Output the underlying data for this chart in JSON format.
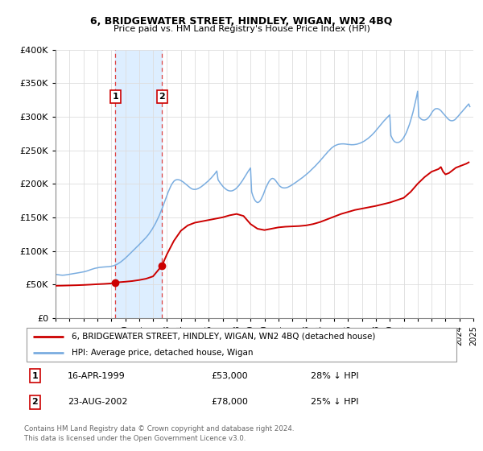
{
  "title": "6, BRIDGEWATER STREET, HINDLEY, WIGAN, WN2 4BQ",
  "subtitle": "Price paid vs. HM Land Registry's House Price Index (HPI)",
  "ylim": [
    0,
    400000
  ],
  "yticks": [
    0,
    50000,
    100000,
    150000,
    200000,
    250000,
    300000,
    350000,
    400000
  ],
  "xlim": [
    1995,
    2025
  ],
  "background_color": "#ffffff",
  "grid_color": "#dddddd",
  "hpi_color": "#7aade0",
  "price_color": "#cc0000",
  "shade_color": "#ddeeff",
  "shade_x1": 1999.29,
  "shade_x2": 2002.64,
  "ann1_x": 1999.29,
  "ann1_y": 53000,
  "ann2_x": 2002.64,
  "ann2_y": 78000,
  "legend_line1": "6, BRIDGEWATER STREET, HINDLEY, WIGAN, WN2 4BQ (detached house)",
  "legend_line2": "HPI: Average price, detached house, Wigan",
  "info1_label": "1",
  "info1_date": "16-APR-1999",
  "info1_price": "£53,000",
  "info1_hpi": "28% ↓ HPI",
  "info2_label": "2",
  "info2_date": "23-AUG-2002",
  "info2_price": "£78,000",
  "info2_hpi": "25% ↓ HPI",
  "footer1": "Contains HM Land Registry data © Crown copyright and database right 2024.",
  "footer2": "This data is licensed under the Open Government Licence v3.0.",
  "hpi_data": [
    [
      1995.0,
      65000
    ],
    [
      1995.08,
      64800
    ],
    [
      1995.17,
      64500
    ],
    [
      1995.25,
      64200
    ],
    [
      1995.33,
      64000
    ],
    [
      1995.42,
      63800
    ],
    [
      1995.5,
      63700
    ],
    [
      1995.58,
      63800
    ],
    [
      1995.67,
      64000
    ],
    [
      1995.75,
      64200
    ],
    [
      1995.83,
      64500
    ],
    [
      1995.92,
      64800
    ],
    [
      1996.0,
      65000
    ],
    [
      1996.08,
      65300
    ],
    [
      1996.17,
      65600
    ],
    [
      1996.25,
      65900
    ],
    [
      1996.33,
      66200
    ],
    [
      1996.42,
      66500
    ],
    [
      1996.5,
      66800
    ],
    [
      1996.58,
      67100
    ],
    [
      1996.67,
      67400
    ],
    [
      1996.75,
      67700
    ],
    [
      1996.83,
      68000
    ],
    [
      1996.92,
      68300
    ],
    [
      1997.0,
      68600
    ],
    [
      1997.08,
      69000
    ],
    [
      1997.17,
      69500
    ],
    [
      1997.25,
      70000
    ],
    [
      1997.33,
      70600
    ],
    [
      1997.42,
      71200
    ],
    [
      1997.5,
      71800
    ],
    [
      1997.58,
      72400
    ],
    [
      1997.67,
      73000
    ],
    [
      1997.75,
      73500
    ],
    [
      1997.83,
      74000
    ],
    [
      1997.92,
      74400
    ],
    [
      1998.0,
      74800
    ],
    [
      1998.08,
      75100
    ],
    [
      1998.17,
      75400
    ],
    [
      1998.25,
      75600
    ],
    [
      1998.33,
      75800
    ],
    [
      1998.42,
      75900
    ],
    [
      1998.5,
      76000
    ],
    [
      1998.58,
      76100
    ],
    [
      1998.67,
      76200
    ],
    [
      1998.75,
      76300
    ],
    [
      1998.83,
      76500
    ],
    [
      1998.92,
      76700
    ],
    [
      1999.0,
      77000
    ],
    [
      1999.08,
      77400
    ],
    [
      1999.17,
      77900
    ],
    [
      1999.25,
      78500
    ],
    [
      1999.33,
      79200
    ],
    [
      1999.42,
      80000
    ],
    [
      1999.5,
      81000
    ],
    [
      1999.58,
      82100
    ],
    [
      1999.67,
      83300
    ],
    [
      1999.75,
      84600
    ],
    [
      1999.83,
      86000
    ],
    [
      1999.92,
      87500
    ],
    [
      2000.0,
      89000
    ],
    [
      2000.08,
      90600
    ],
    [
      2000.17,
      92200
    ],
    [
      2000.25,
      93900
    ],
    [
      2000.33,
      95600
    ],
    [
      2000.42,
      97300
    ],
    [
      2000.5,
      99000
    ],
    [
      2000.58,
      100700
    ],
    [
      2000.67,
      102400
    ],
    [
      2000.75,
      104100
    ],
    [
      2000.83,
      105800
    ],
    [
      2000.92,
      107500
    ],
    [
      2001.0,
      109200
    ],
    [
      2001.08,
      111000
    ],
    [
      2001.17,
      112800
    ],
    [
      2001.25,
      114600
    ],
    [
      2001.33,
      116400
    ],
    [
      2001.42,
      118200
    ],
    [
      2001.5,
      120000
    ],
    [
      2001.58,
      122000
    ],
    [
      2001.67,
      124200
    ],
    [
      2001.75,
      126500
    ],
    [
      2001.83,
      129000
    ],
    [
      2001.92,
      131700
    ],
    [
      2002.0,
      134500
    ],
    [
      2002.08,
      137500
    ],
    [
      2002.17,
      140700
    ],
    [
      2002.25,
      144100
    ],
    [
      2002.33,
      147700
    ],
    [
      2002.42,
      151500
    ],
    [
      2002.5,
      155500
    ],
    [
      2002.58,
      159700
    ],
    [
      2002.67,
      164100
    ],
    [
      2002.75,
      168600
    ],
    [
      2002.83,
      173200
    ],
    [
      2002.92,
      177900
    ],
    [
      2003.0,
      182600
    ],
    [
      2003.08,
      187200
    ],
    [
      2003.17,
      191500
    ],
    [
      2003.25,
      195400
    ],
    [
      2003.33,
      198800
    ],
    [
      2003.42,
      201600
    ],
    [
      2003.5,
      203800
    ],
    [
      2003.58,
      205200
    ],
    [
      2003.67,
      206000
    ],
    [
      2003.75,
      206200
    ],
    [
      2003.83,
      206000
    ],
    [
      2003.92,
      205600
    ],
    [
      2004.0,
      204800
    ],
    [
      2004.08,
      203800
    ],
    [
      2004.17,
      202600
    ],
    [
      2004.25,
      201200
    ],
    [
      2004.33,
      199700
    ],
    [
      2004.42,
      198200
    ],
    [
      2004.5,
      196700
    ],
    [
      2004.58,
      195300
    ],
    [
      2004.67,
      194000
    ],
    [
      2004.75,
      192900
    ],
    [
      2004.83,
      192100
    ],
    [
      2004.92,
      191700
    ],
    [
      2005.0,
      191600
    ],
    [
      2005.08,
      191800
    ],
    [
      2005.17,
      192300
    ],
    [
      2005.25,
      193000
    ],
    [
      2005.33,
      193900
    ],
    [
      2005.42,
      195000
    ],
    [
      2005.5,
      196200
    ],
    [
      2005.58,
      197500
    ],
    [
      2005.67,
      198900
    ],
    [
      2005.75,
      200400
    ],
    [
      2005.83,
      201900
    ],
    [
      2005.92,
      203400
    ],
    [
      2006.0,
      205000
    ],
    [
      2006.08,
      206700
    ],
    [
      2006.17,
      208500
    ],
    [
      2006.25,
      210400
    ],
    [
      2006.33,
      212400
    ],
    [
      2006.42,
      214500
    ],
    [
      2006.5,
      216700
    ],
    [
      2006.58,
      219000
    ],
    [
      2006.67,
      206000
    ],
    [
      2006.75,
      203500
    ],
    [
      2006.83,
      201000
    ],
    [
      2006.92,
      198600
    ],
    [
      2007.0,
      196500
    ],
    [
      2007.08,
      194600
    ],
    [
      2007.17,
      193000
    ],
    [
      2007.25,
      191700
    ],
    [
      2007.33,
      190600
    ],
    [
      2007.42,
      189800
    ],
    [
      2007.5,
      189400
    ],
    [
      2007.58,
      189300
    ],
    [
      2007.67,
      189500
    ],
    [
      2007.75,
      190100
    ],
    [
      2007.83,
      191000
    ],
    [
      2007.92,
      192200
    ],
    [
      2008.0,
      193700
    ],
    [
      2008.08,
      195500
    ],
    [
      2008.17,
      197500
    ],
    [
      2008.25,
      199700
    ],
    [
      2008.33,
      202100
    ],
    [
      2008.42,
      204700
    ],
    [
      2008.5,
      207400
    ],
    [
      2008.58,
      210200
    ],
    [
      2008.67,
      213000
    ],
    [
      2008.75,
      215800
    ],
    [
      2008.83,
      218500
    ],
    [
      2008.92,
      221100
    ],
    [
      2009.0,
      223600
    ],
    [
      2009.08,
      188000
    ],
    [
      2009.17,
      182000
    ],
    [
      2009.25,
      178000
    ],
    [
      2009.33,
      175000
    ],
    [
      2009.42,
      173000
    ],
    [
      2009.5,
      172000
    ],
    [
      2009.58,
      172500
    ],
    [
      2009.67,
      174000
    ],
    [
      2009.75,
      176500
    ],
    [
      2009.83,
      180000
    ],
    [
      2009.92,
      184000
    ],
    [
      2010.0,
      188500
    ],
    [
      2010.08,
      193000
    ],
    [
      2010.17,
      197000
    ],
    [
      2010.25,
      200500
    ],
    [
      2010.33,
      203500
    ],
    [
      2010.42,
      206000
    ],
    [
      2010.5,
      207500
    ],
    [
      2010.58,
      208000
    ],
    [
      2010.67,
      207500
    ],
    [
      2010.75,
      206000
    ],
    [
      2010.83,
      204000
    ],
    [
      2010.92,
      201500
    ],
    [
      2011.0,
      199000
    ],
    [
      2011.08,
      197000
    ],
    [
      2011.17,
      195500
    ],
    [
      2011.25,
      194500
    ],
    [
      2011.33,
      194000
    ],
    [
      2011.42,
      193800
    ],
    [
      2011.5,
      193900
    ],
    [
      2011.58,
      194200
    ],
    [
      2011.67,
      194800
    ],
    [
      2011.75,
      195600
    ],
    [
      2011.83,
      196500
    ],
    [
      2011.92,
      197500
    ],
    [
      2012.0,
      198600
    ],
    [
      2012.08,
      199700
    ],
    [
      2012.17,
      200900
    ],
    [
      2012.25,
      202100
    ],
    [
      2012.33,
      203300
    ],
    [
      2012.42,
      204500
    ],
    [
      2012.5,
      205700
    ],
    [
      2012.58,
      207000
    ],
    [
      2012.67,
      208300
    ],
    [
      2012.75,
      209600
    ],
    [
      2012.83,
      211000
    ],
    [
      2012.92,
      212400
    ],
    [
      2013.0,
      213800
    ],
    [
      2013.08,
      215300
    ],
    [
      2013.17,
      216800
    ],
    [
      2013.25,
      218400
    ],
    [
      2013.33,
      220000
    ],
    [
      2013.42,
      221700
    ],
    [
      2013.5,
      223400
    ],
    [
      2013.58,
      225100
    ],
    [
      2013.67,
      226900
    ],
    [
      2013.75,
      228700
    ],
    [
      2013.83,
      230600
    ],
    [
      2013.92,
      232500
    ],
    [
      2014.0,
      234400
    ],
    [
      2014.08,
      236400
    ],
    [
      2014.17,
      238400
    ],
    [
      2014.25,
      240400
    ],
    [
      2014.33,
      242400
    ],
    [
      2014.42,
      244400
    ],
    [
      2014.5,
      246400
    ],
    [
      2014.58,
      248300
    ],
    [
      2014.67,
      250200
    ],
    [
      2014.75,
      251900
    ],
    [
      2014.83,
      253500
    ],
    [
      2014.92,
      254900
    ],
    [
      2015.0,
      256000
    ],
    [
      2015.08,
      257000
    ],
    [
      2015.17,
      257800
    ],
    [
      2015.25,
      258400
    ],
    [
      2015.33,
      258900
    ],
    [
      2015.42,
      259200
    ],
    [
      2015.5,
      259400
    ],
    [
      2015.58,
      259500
    ],
    [
      2015.67,
      259500
    ],
    [
      2015.75,
      259400
    ],
    [
      2015.83,
      259200
    ],
    [
      2015.92,
      259000
    ],
    [
      2016.0,
      258700
    ],
    [
      2016.08,
      258500
    ],
    [
      2016.17,
      258300
    ],
    [
      2016.25,
      258200
    ],
    [
      2016.33,
      258200
    ],
    [
      2016.42,
      258300
    ],
    [
      2016.5,
      258500
    ],
    [
      2016.58,
      258800
    ],
    [
      2016.67,
      259200
    ],
    [
      2016.75,
      259700
    ],
    [
      2016.83,
      260300
    ],
    [
      2016.92,
      261000
    ],
    [
      2017.0,
      261800
    ],
    [
      2017.08,
      262700
    ],
    [
      2017.17,
      263700
    ],
    [
      2017.25,
      264800
    ],
    [
      2017.33,
      266000
    ],
    [
      2017.42,
      267300
    ],
    [
      2017.5,
      268700
    ],
    [
      2017.58,
      270200
    ],
    [
      2017.67,
      271800
    ],
    [
      2017.75,
      273500
    ],
    [
      2017.83,
      275300
    ],
    [
      2017.92,
      277200
    ],
    [
      2018.0,
      279200
    ],
    [
      2018.08,
      281200
    ],
    [
      2018.17,
      283300
    ],
    [
      2018.25,
      285400
    ],
    [
      2018.33,
      287500
    ],
    [
      2018.42,
      289600
    ],
    [
      2018.5,
      291700
    ],
    [
      2018.58,
      293700
    ],
    [
      2018.67,
      295700
    ],
    [
      2018.75,
      297600
    ],
    [
      2018.83,
      299400
    ],
    [
      2018.92,
      301100
    ],
    [
      2019.0,
      302700
    ],
    [
      2019.08,
      272000
    ],
    [
      2019.17,
      268000
    ],
    [
      2019.25,
      265000
    ],
    [
      2019.33,
      263000
    ],
    [
      2019.42,
      262000
    ],
    [
      2019.5,
      261500
    ],
    [
      2019.58,
      261500
    ],
    [
      2019.67,
      262000
    ],
    [
      2019.75,
      263000
    ],
    [
      2019.83,
      264500
    ],
    [
      2019.92,
      266500
    ],
    [
      2020.0,
      269000
    ],
    [
      2020.08,
      272000
    ],
    [
      2020.17,
      275500
    ],
    [
      2020.25,
      279500
    ],
    [
      2020.33,
      284000
    ],
    [
      2020.42,
      289000
    ],
    [
      2020.5,
      294500
    ],
    [
      2020.58,
      300500
    ],
    [
      2020.67,
      307000
    ],
    [
      2020.75,
      314000
    ],
    [
      2020.83,
      321500
    ],
    [
      2020.92,
      329500
    ],
    [
      2021.0,
      338000
    ],
    [
      2021.08,
      300000
    ],
    [
      2021.17,
      298000
    ],
    [
      2021.25,
      296500
    ],
    [
      2021.33,
      295500
    ],
    [
      2021.42,
      295000
    ],
    [
      2021.5,
      295000
    ],
    [
      2021.58,
      295500
    ],
    [
      2021.67,
      296500
    ],
    [
      2021.75,
      298000
    ],
    [
      2021.83,
      300000
    ],
    [
      2021.92,
      302500
    ],
    [
      2022.0,
      305500
    ],
    [
      2022.08,
      308000
    ],
    [
      2022.17,
      310000
    ],
    [
      2022.25,
      311500
    ],
    [
      2022.33,
      312000
    ],
    [
      2022.42,
      312000
    ],
    [
      2022.5,
      311500
    ],
    [
      2022.58,
      310500
    ],
    [
      2022.67,
      309000
    ],
    [
      2022.75,
      307000
    ],
    [
      2022.83,
      305000
    ],
    [
      2022.92,
      303000
    ],
    [
      2023.0,
      301000
    ],
    [
      2023.08,
      299000
    ],
    [
      2023.17,
      297000
    ],
    [
      2023.25,
      295500
    ],
    [
      2023.33,
      294500
    ],
    [
      2023.42,
      294000
    ],
    [
      2023.5,
      294000
    ],
    [
      2023.58,
      294500
    ],
    [
      2023.67,
      295500
    ],
    [
      2023.75,
      297000
    ],
    [
      2023.83,
      299000
    ],
    [
      2023.92,
      301000
    ],
    [
      2024.0,
      303000
    ],
    [
      2024.08,
      305000
    ],
    [
      2024.17,
      307000
    ],
    [
      2024.25,
      309000
    ],
    [
      2024.33,
      311000
    ],
    [
      2024.42,
      313000
    ],
    [
      2024.5,
      315000
    ],
    [
      2024.58,
      317000
    ],
    [
      2024.67,
      319000
    ],
    [
      2024.75,
      315000
    ]
  ],
  "price_data": [
    [
      1995.0,
      48000
    ],
    [
      1995.5,
      48200
    ],
    [
      1996.0,
      48500
    ],
    [
      1996.5,
      48800
    ],
    [
      1997.0,
      49200
    ],
    [
      1997.5,
      49700
    ],
    [
      1998.0,
      50300
    ],
    [
      1998.5,
      50800
    ],
    [
      1999.0,
      51500
    ],
    [
      1999.29,
      53000
    ],
    [
      1999.5,
      53200
    ],
    [
      2000.0,
      54000
    ],
    [
      2000.5,
      55000
    ],
    [
      2001.0,
      56500
    ],
    [
      2001.5,
      58500
    ],
    [
      2002.0,
      62000
    ],
    [
      2002.64,
      78000
    ],
    [
      2003.0,
      95000
    ],
    [
      2003.5,
      115000
    ],
    [
      2004.0,
      130000
    ],
    [
      2004.5,
      138000
    ],
    [
      2005.0,
      142000
    ],
    [
      2005.5,
      144000
    ],
    [
      2006.0,
      146000
    ],
    [
      2006.5,
      148000
    ],
    [
      2007.0,
      150000
    ],
    [
      2007.5,
      153000
    ],
    [
      2008.0,
      155000
    ],
    [
      2008.5,
      152000
    ],
    [
      2009.0,
      140000
    ],
    [
      2009.5,
      133000
    ],
    [
      2010.0,
      131000
    ],
    [
      2010.5,
      133000
    ],
    [
      2011.0,
      135000
    ],
    [
      2011.5,
      136000
    ],
    [
      2012.0,
      136500
    ],
    [
      2012.5,
      137000
    ],
    [
      2013.0,
      138000
    ],
    [
      2013.5,
      140000
    ],
    [
      2014.0,
      143000
    ],
    [
      2014.5,
      147000
    ],
    [
      2015.0,
      151000
    ],
    [
      2015.5,
      155000
    ],
    [
      2016.0,
      158000
    ],
    [
      2016.5,
      161000
    ],
    [
      2017.0,
      163000
    ],
    [
      2017.5,
      165000
    ],
    [
      2018.0,
      167000
    ],
    [
      2018.5,
      169500
    ],
    [
      2019.0,
      172000
    ],
    [
      2019.5,
      175500
    ],
    [
      2020.0,
      179000
    ],
    [
      2020.5,
      188000
    ],
    [
      2021.0,
      200000
    ],
    [
      2021.5,
      210000
    ],
    [
      2022.0,
      218000
    ],
    [
      2022.5,
      222000
    ],
    [
      2022.67,
      225000
    ],
    [
      2022.83,
      218000
    ],
    [
      2023.0,
      214000
    ],
    [
      2023.25,
      216000
    ],
    [
      2023.5,
      220000
    ],
    [
      2023.75,
      224000
    ],
    [
      2024.0,
      226000
    ],
    [
      2024.25,
      228000
    ],
    [
      2024.5,
      230000
    ],
    [
      2024.67,
      232000
    ]
  ]
}
